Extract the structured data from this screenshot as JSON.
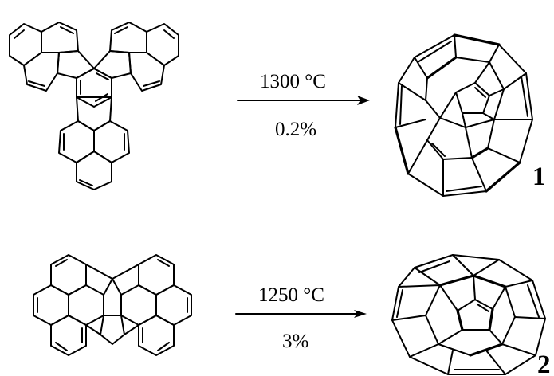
{
  "reactions": [
    {
      "condition_top": "1300 °C",
      "condition_bottom": "0.2%",
      "product_label": "1"
    },
    {
      "condition_top": "1250 °C",
      "condition_bottom": "3%",
      "product_label": "2"
    }
  ]
}
